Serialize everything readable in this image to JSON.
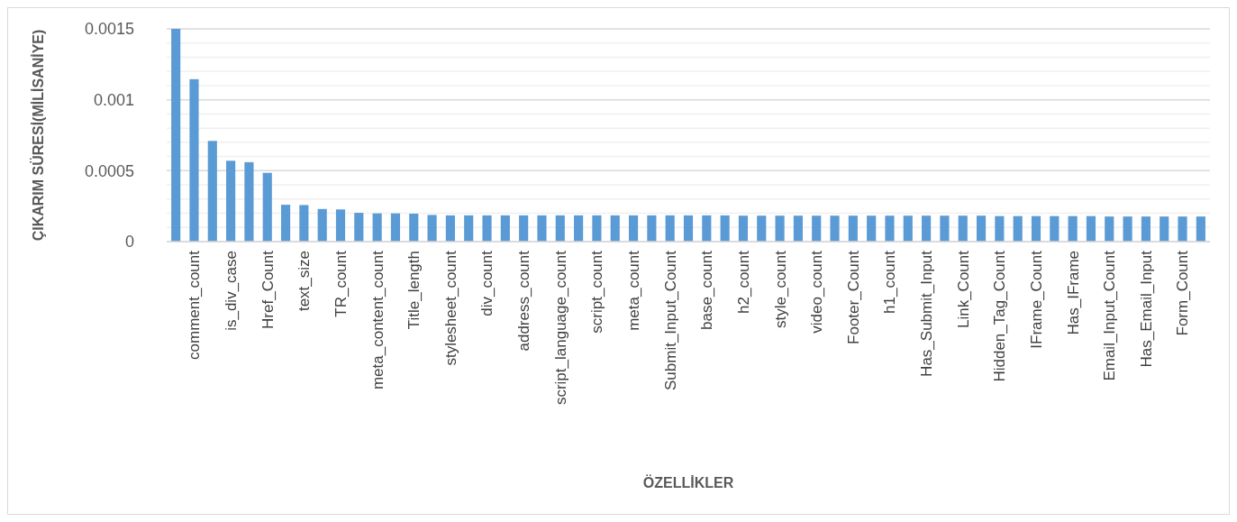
{
  "chart_data": {
    "type": "bar",
    "xlabel": "ÖZELLİKLER",
    "ylabel": "ÇIKARIM SÜRESİ(MİLİSANİYE)",
    "categories": [
      null,
      "comment_count",
      null,
      "is_div_case",
      null,
      "Href_Count",
      null,
      "text_size",
      null,
      "TR_count",
      null,
      "meta_content_count",
      null,
      "Title_length",
      null,
      "stylesheet_count",
      null,
      "div_count",
      null,
      "address_count",
      null,
      "script_language_count",
      null,
      "script_count",
      null,
      "meta_count",
      null,
      "Submit_Input_Count",
      null,
      "base_count",
      null,
      "h2_count",
      null,
      "style_count",
      null,
      "video_count",
      null,
      "Footer_Count",
      null,
      "h1_count",
      null,
      "Has_Submit_Input",
      null,
      "Link_Count",
      null,
      "Hidden_Tag_Count",
      null,
      "IFrame_Count",
      null,
      "Has_IFrame",
      null,
      "Email_Input_Count",
      null,
      "Has_Email_Input",
      null,
      "Form_Count",
      null
    ],
    "values": [
      0.0015,
      0.001145,
      0.00071,
      0.00057,
      0.00056,
      0.000485,
      0.00026,
      0.000258,
      0.00023,
      0.000227,
      0.000203,
      0.000199,
      0.000199,
      0.000197,
      0.000188,
      0.000185,
      0.000185,
      0.000185,
      0.000185,
      0.000185,
      0.000185,
      0.000185,
      0.000185,
      0.000185,
      0.000185,
      0.000185,
      0.000185,
      0.000185,
      0.000185,
      0.000185,
      0.000185,
      0.000183,
      0.000183,
      0.000183,
      0.000183,
      0.000183,
      0.000183,
      0.000183,
      0.000183,
      0.000183,
      0.000183,
      0.000183,
      0.000183,
      0.000183,
      0.000183,
      0.00018,
      0.00018,
      0.00018,
      0.00018,
      0.00018,
      0.00018,
      0.000177,
      0.000177,
      0.000177,
      0.000177,
      0.000177,
      0.000177
    ],
    "color": "#5b9bd5",
    "ylim": [
      0,
      0.0015
    ],
    "yticks": [
      0,
      {
        "value": 0.0001,
        "label": null
      },
      {
        "value": 0.0002,
        "label": null
      },
      {
        "value": 0.0003,
        "label": null
      },
      {
        "value": 0.0004,
        "label": null
      },
      0.0005,
      {
        "value": 0.0006,
        "label": null
      },
      {
        "value": 0.0007,
        "label": null
      },
      {
        "value": 0.0008,
        "label": null
      },
      {
        "value": 0.0009,
        "label": null
      },
      0.001,
      {
        "value": 0.0011,
        "label": null
      },
      {
        "value": 0.0012,
        "label": null
      },
      {
        "value": 0.0013,
        "label": null
      },
      {
        "value": 0.0014,
        "label": null
      },
      0.0015
    ],
    "grid": true
  }
}
